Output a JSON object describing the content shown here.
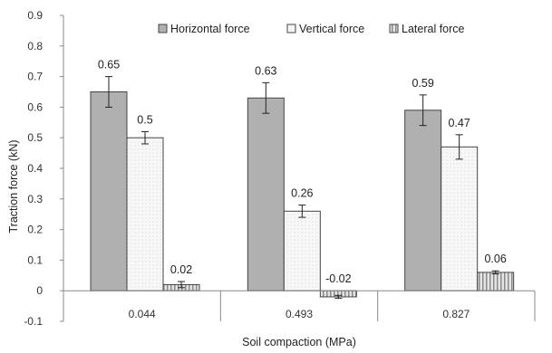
{
  "chart_data": {
    "type": "bar",
    "title": "",
    "xlabel": "Soil compaction (MPa)",
    "ylabel": "Traction force (kN)",
    "ylim": [
      -0.1,
      0.9
    ],
    "ytick_step": 0.1,
    "yticks": [
      "-0.1",
      "0",
      "0.1",
      "0.2",
      "0.3",
      "0.4",
      "0.5",
      "0.6",
      "0.7",
      "0.8",
      "0.9"
    ],
    "categories": [
      "0.044",
      "0.493",
      "0.827"
    ],
    "grid": false,
    "legend_position": "top-right",
    "series": [
      {
        "name": "Horizontal force",
        "values": [
          0.65,
          0.63,
          0.59
        ],
        "labels": [
          "0.65",
          "0.63",
          "0.59"
        ],
        "errors": [
          0.05,
          0.05,
          0.05
        ],
        "fill": "#b0b0b0",
        "pattern": "solid"
      },
      {
        "name": "Vertical force",
        "values": [
          0.5,
          0.26,
          0.47
        ],
        "labels": [
          "0.5",
          "0.26",
          "0.47"
        ],
        "errors": [
          0.02,
          0.02,
          0.04
        ],
        "fill": "#f7f7f7",
        "pattern": "dots"
      },
      {
        "name": "Lateral force",
        "values": [
          0.02,
          -0.02,
          0.06
        ],
        "labels": [
          "0.02",
          "-0.02",
          "0.06"
        ],
        "errors": [
          0.01,
          0.005,
          0.005
        ],
        "fill": "#d6d6d6",
        "pattern": "vertical-lines"
      }
    ]
  }
}
